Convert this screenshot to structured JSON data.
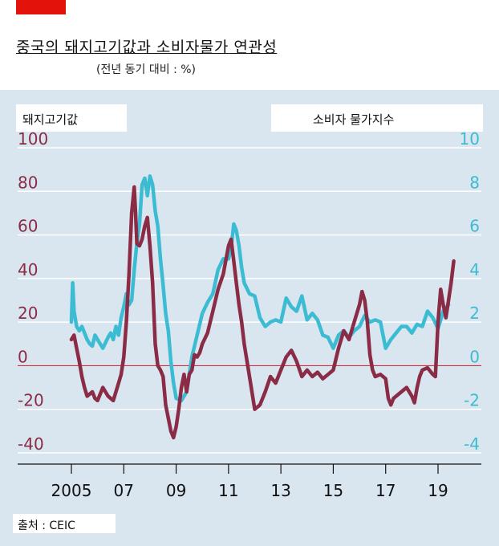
{
  "header": {
    "title": "중국의 돼지고기값과 소비자물가 연관성",
    "subtitle": "(전년 동기 대비 : %)"
  },
  "source": "출처 : CEIC",
  "colors": {
    "plot_background": "#d9e5ef",
    "pork": "#8b2c47",
    "cpi": "#3cbcd2",
    "zero_line": "#c8333c",
    "brand": "#e3120b"
  },
  "chart_data": {
    "type": "line",
    "title": "중국의 돼지고기값과 소비자물가 연관성",
    "subtitle": "(전년 동기 대비 : %)",
    "x_ticks": [
      "2005",
      "07",
      "09",
      "11",
      "13",
      "15",
      "17",
      "19"
    ],
    "y_left": {
      "label": "돼지고기값",
      "ticks": [
        "100",
        "80",
        "60",
        "40",
        "20",
        "0",
        "-20",
        "-40"
      ],
      "range": [
        -40,
        100
      ]
    },
    "y_right": {
      "label": "소비자 물가지수",
      "ticks": [
        "10",
        "8",
        "6",
        "4",
        "2",
        "0",
        "-2",
        "-4"
      ],
      "range": [
        -4,
        10
      ]
    },
    "grid": true,
    "series": [
      {
        "name": "돼지고기값",
        "axis": "left",
        "x": [
          2005.0,
          2005.1,
          2005.2,
          2005.3,
          2005.4,
          2005.5,
          2005.6,
          2005.7,
          2005.8,
          2005.9,
          2006.0,
          2006.2,
          2006.4,
          2006.6,
          2006.7,
          2006.8,
          2006.9,
          2007.0,
          2007.1,
          2007.2,
          2007.3,
          2007.4,
          2007.45,
          2007.5,
          2007.6,
          2007.7,
          2007.8,
          2007.9,
          2008.0,
          2008.1,
          2008.2,
          2008.3,
          2008.4,
          2008.5,
          2008.6,
          2008.8,
          2008.9,
          2009.0,
          2009.1,
          2009.2,
          2009.3,
          2009.4,
          2009.5,
          2009.6,
          2009.7,
          2009.8,
          2009.9,
          2010.0,
          2010.2,
          2010.4,
          2010.6,
          2010.8,
          2011.0,
          2011.1,
          2011.2,
          2011.3,
          2011.4,
          2011.5,
          2011.6,
          2011.8,
          2012.0,
          2012.2,
          2012.4,
          2012.6,
          2012.8,
          2013.0,
          2013.2,
          2013.4,
          2013.6,
          2013.8,
          2014.0,
          2014.2,
          2014.4,
          2014.6,
          2014.8,
          2015.0,
          2015.2,
          2015.4,
          2015.6,
          2015.8,
          2016.0,
          2016.1,
          2016.2,
          2016.3,
          2016.4,
          2016.5,
          2016.6,
          2016.8,
          2017.0,
          2017.1,
          2017.2,
          2017.3,
          2017.4,
          2017.6,
          2017.8,
          2018.0,
          2018.1,
          2018.2,
          2018.3,
          2018.4,
          2018.6,
          2018.8,
          2018.9,
          2019.0,
          2019.1,
          2019.2,
          2019.3,
          2019.4,
          2019.5,
          2019.6
        ],
        "values": [
          12,
          14,
          8,
          2,
          -5,
          -10,
          -14,
          -13,
          -12,
          -15,
          -16,
          -10,
          -14,
          -16,
          -12,
          -8,
          -4,
          4,
          20,
          42,
          70,
          82,
          70,
          56,
          55,
          58,
          64,
          68,
          55,
          38,
          10,
          0,
          -2,
          -5,
          -18,
          -30,
          -33,
          -28,
          -20,
          -10,
          -4,
          -12,
          -4,
          -2,
          5,
          4,
          6,
          10,
          15,
          25,
          35,
          42,
          55,
          58,
          48,
          38,
          28,
          20,
          10,
          -5,
          -20,
          -18,
          -12,
          -5,
          -8,
          -2,
          4,
          7,
          2,
          -5,
          -2,
          -5,
          -3,
          -6,
          -4,
          -2,
          8,
          16,
          12,
          20,
          28,
          34,
          30,
          20,
          5,
          -2,
          -5,
          -4,
          -6,
          -15,
          -18,
          -15,
          -14,
          -12,
          -10,
          -14,
          -17,
          -10,
          -5,
          -2,
          -1,
          -4,
          -5,
          20,
          35,
          28,
          22,
          30,
          38,
          48
        ]
      },
      {
        "name": "소비자 물가지수",
        "axis": "right",
        "x": [
          2005.0,
          2005.05,
          2005.1,
          2005.2,
          2005.3,
          2005.4,
          2005.5,
          2005.6,
          2005.7,
          2005.8,
          2005.9,
          2006.0,
          2006.1,
          2006.2,
          2006.4,
          2006.5,
          2006.6,
          2006.7,
          2006.8,
          2006.9,
          2007.0,
          2007.1,
          2007.2,
          2007.3,
          2007.4,
          2007.5,
          2007.6,
          2007.7,
          2007.8,
          2007.9,
          2008.0,
          2008.1,
          2008.2,
          2008.3,
          2008.4,
          2008.5,
          2008.6,
          2008.7,
          2008.8,
          2008.9,
          2009.0,
          2009.2,
          2009.4,
          2009.6,
          2009.8,
          2010.0,
          2010.2,
          2010.4,
          2010.6,
          2010.8,
          2011.0,
          2011.1,
          2011.2,
          2011.3,
          2011.4,
          2011.5,
          2011.6,
          2011.8,
          2012.0,
          2012.2,
          2012.4,
          2012.6,
          2012.8,
          2013.0,
          2013.2,
          2013.4,
          2013.6,
          2013.8,
          2014.0,
          2014.2,
          2014.4,
          2014.6,
          2014.8,
          2015.0,
          2015.2,
          2015.4,
          2015.6,
          2015.8,
          2016.0,
          2016.2,
          2016.4,
          2016.6,
          2016.8,
          2017.0,
          2017.2,
          2017.4,
          2017.6,
          2017.8,
          2018.0,
          2018.2,
          2018.4,
          2018.6,
          2018.8,
          2019.0,
          2019.2,
          2019.4
        ],
        "values": [
          2.0,
          3.8,
          2.5,
          1.8,
          1.6,
          1.8,
          1.5,
          1.2,
          1.0,
          0.9,
          1.4,
          1.2,
          1.0,
          0.8,
          1.3,
          1.5,
          1.2,
          1.8,
          1.4,
          2.2,
          2.7,
          3.3,
          2.8,
          3.0,
          4.4,
          5.6,
          6.5,
          8.3,
          8.6,
          7.8,
          8.7,
          8.3,
          7.1,
          6.4,
          4.9,
          3.7,
          2.4,
          1.6,
          0.2,
          -0.8,
          -1.5,
          -1.6,
          -1.2,
          0.4,
          1.4,
          2.4,
          2.9,
          3.3,
          4.4,
          4.9,
          4.9,
          5.4,
          6.5,
          6.2,
          5.5,
          4.5,
          3.8,
          3.3,
          3.2,
          2.2,
          1.8,
          2.0,
          2.1,
          2.0,
          3.1,
          2.7,
          2.5,
          3.2,
          2.1,
          2.4,
          2.1,
          1.4,
          1.3,
          0.8,
          1.4,
          1.6,
          1.3,
          1.6,
          1.8,
          2.3,
          2.0,
          2.1,
          2.0,
          0.8,
          1.2,
          1.5,
          1.8,
          1.8,
          1.5,
          1.9,
          1.8,
          2.5,
          2.2,
          1.7,
          2.5,
          2.8
        ]
      }
    ]
  }
}
